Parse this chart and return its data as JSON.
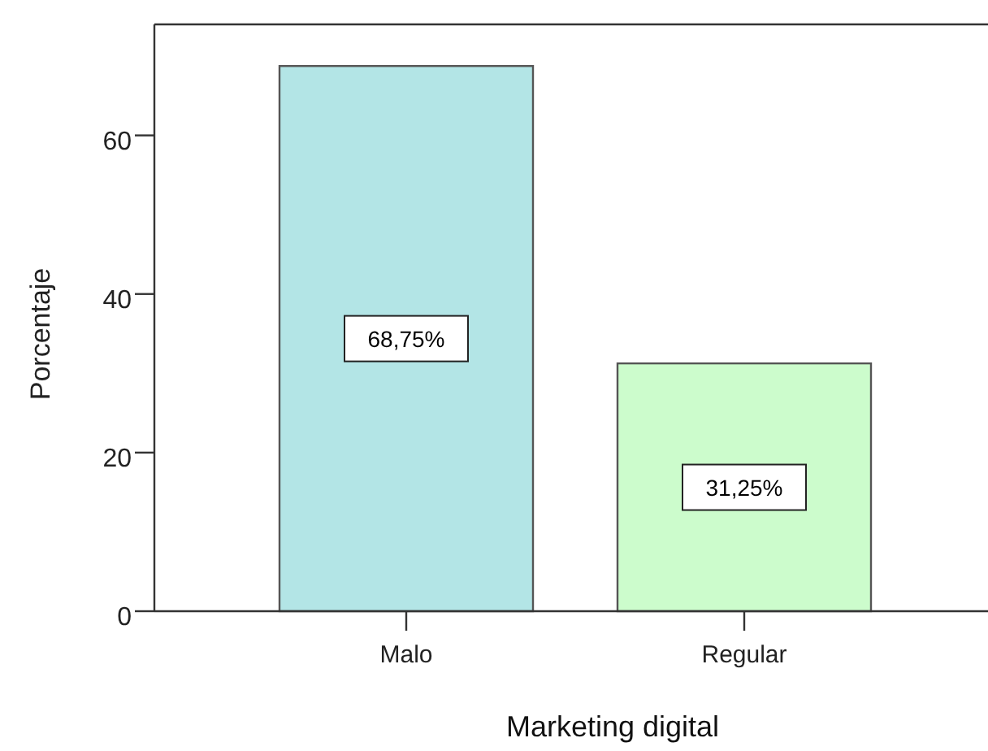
{
  "chart_data": {
    "type": "bar",
    "xlabel": "Marketing digital",
    "ylabel": "Porcentaje",
    "categories": [
      "Malo",
      "Regular"
    ],
    "values": [
      68.75,
      31.25
    ],
    "colors": [
      "#b3e5e6",
      "#ccfccc"
    ],
    "value_labels": [
      "68,75%",
      "31,25%"
    ],
    "ylim": [
      0,
      74
    ],
    "yticks": [
      0,
      20,
      40,
      60
    ],
    "grid": false
  }
}
